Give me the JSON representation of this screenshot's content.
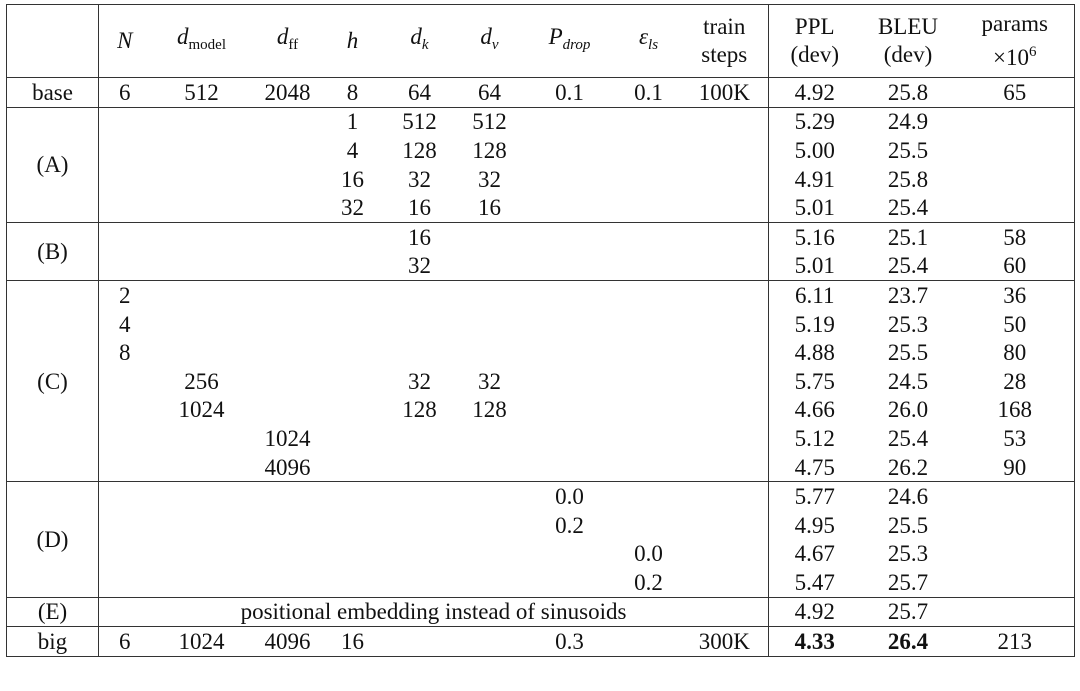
{
  "table": {
    "header": [
      [
        [
          {
            "text": "N",
            "style": "italic"
          }
        ]
      ],
      [
        [
          {
            "text": "d",
            "style": "italic"
          },
          {
            "text": "model",
            "style": "sub"
          }
        ]
      ],
      [
        [
          {
            "text": "d",
            "style": "italic"
          },
          {
            "text": "ff",
            "style": "sub"
          }
        ]
      ],
      [
        [
          {
            "text": "h",
            "style": "italic"
          }
        ]
      ],
      [
        [
          {
            "text": "d",
            "style": "italic"
          },
          {
            "text": "k",
            "style": "sub-italic"
          }
        ]
      ],
      [
        [
          {
            "text": "d",
            "style": "italic"
          },
          {
            "text": "v",
            "style": "sub-italic"
          }
        ]
      ],
      [
        [
          {
            "text": "P",
            "style": "italic"
          },
          {
            "text": "drop",
            "style": "sub-italic"
          }
        ]
      ],
      [
        [
          {
            "text": "ε",
            "style": "italic"
          },
          {
            "text": "ls",
            "style": "sub-italic"
          }
        ]
      ],
      [
        [
          {
            "text": "train",
            "style": "roman"
          }
        ],
        [
          {
            "text": "steps",
            "style": "roman"
          }
        ]
      ],
      [
        [
          {
            "text": "PPL",
            "style": "roman"
          }
        ],
        [
          {
            "text": "(dev)",
            "style": "roman"
          }
        ]
      ],
      [
        [
          {
            "text": "BLEU",
            "style": "roman"
          }
        ],
        [
          {
            "text": "(dev)",
            "style": "roman"
          }
        ]
      ],
      [
        [
          {
            "text": "params",
            "style": "roman"
          }
        ],
        [
          {
            "text": "×10",
            "style": "roman"
          },
          {
            "text": "6",
            "style": "sup"
          }
        ]
      ]
    ],
    "groups": [
      {
        "label": "base",
        "rows": [
          [
            "6",
            "512",
            "2048",
            "8",
            "64",
            "64",
            "0.1",
            "0.1",
            "100K",
            "4.92",
            "25.8",
            "65"
          ]
        ]
      },
      {
        "label": "(A)",
        "rows": [
          [
            null,
            null,
            null,
            "1",
            "512",
            "512",
            null,
            null,
            null,
            "5.29",
            "24.9",
            null
          ],
          [
            null,
            null,
            null,
            "4",
            "128",
            "128",
            null,
            null,
            null,
            "5.00",
            "25.5",
            null
          ],
          [
            null,
            null,
            null,
            "16",
            "32",
            "32",
            null,
            null,
            null,
            "4.91",
            "25.8",
            null
          ],
          [
            null,
            null,
            null,
            "32",
            "16",
            "16",
            null,
            null,
            null,
            "5.01",
            "25.4",
            null
          ]
        ]
      },
      {
        "label": "(B)",
        "rows": [
          [
            null,
            null,
            null,
            null,
            "16",
            null,
            null,
            null,
            null,
            "5.16",
            "25.1",
            "58"
          ],
          [
            null,
            null,
            null,
            null,
            "32",
            null,
            null,
            null,
            null,
            "5.01",
            "25.4",
            "60"
          ]
        ]
      },
      {
        "label": "(C)",
        "rows": [
          [
            "2",
            null,
            null,
            null,
            null,
            null,
            null,
            null,
            null,
            "6.11",
            "23.7",
            "36"
          ],
          [
            "4",
            null,
            null,
            null,
            null,
            null,
            null,
            null,
            null,
            "5.19",
            "25.3",
            "50"
          ],
          [
            "8",
            null,
            null,
            null,
            null,
            null,
            null,
            null,
            null,
            "4.88",
            "25.5",
            "80"
          ],
          [
            null,
            "256",
            null,
            null,
            "32",
            "32",
            null,
            null,
            null,
            "5.75",
            "24.5",
            "28"
          ],
          [
            null,
            "1024",
            null,
            null,
            "128",
            "128",
            null,
            null,
            null,
            "4.66",
            "26.0",
            "168"
          ],
          [
            null,
            null,
            "1024",
            null,
            null,
            null,
            null,
            null,
            null,
            "5.12",
            "25.4",
            "53"
          ],
          [
            null,
            null,
            "4096",
            null,
            null,
            null,
            null,
            null,
            null,
            "4.75",
            "26.2",
            "90"
          ]
        ]
      },
      {
        "label": "(D)",
        "rows": [
          [
            null,
            null,
            null,
            null,
            null,
            null,
            "0.0",
            null,
            null,
            "5.77",
            "24.6",
            null
          ],
          [
            null,
            null,
            null,
            null,
            null,
            null,
            "0.2",
            null,
            null,
            "4.95",
            "25.5",
            null
          ],
          [
            null,
            null,
            null,
            null,
            null,
            null,
            null,
            "0.0",
            null,
            "4.67",
            "25.3",
            null
          ],
          [
            null,
            null,
            null,
            null,
            null,
            null,
            null,
            "0.2",
            null,
            "5.47",
            "25.7",
            null
          ]
        ]
      },
      {
        "label": "(E)",
        "rows": [
          [
            "positional embedding instead of sinusoids",
            "4.92",
            "25.7",
            null
          ]
        ]
      },
      {
        "label": "big",
        "rows": [
          [
            "6",
            "1024",
            "4096",
            "16",
            null,
            null,
            "0.3",
            null,
            "300K",
            "4.33",
            "26.4",
            "213"
          ]
        ]
      }
    ]
  }
}
